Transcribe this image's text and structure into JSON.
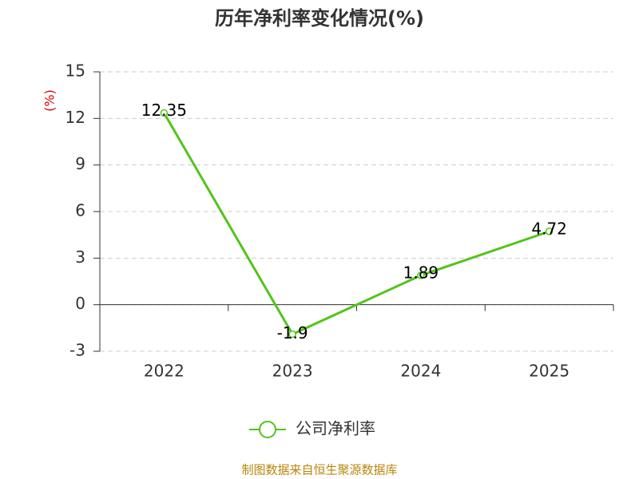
{
  "chart_data": {
    "type": "line",
    "title": "历年净利率变化情况(%)",
    "y_label": "(%)",
    "categories": [
      "2022",
      "2023",
      "2024",
      "2025"
    ],
    "series": [
      {
        "name": "公司净利率",
        "color": "#52c41a",
        "values": [
          12.35,
          -1.9,
          1.89,
          4.72
        ]
      }
    ],
    "ylim": [
      -3,
      15
    ],
    "yticks": [
      -3,
      0,
      3,
      6,
      9,
      12,
      15
    ],
    "grid": true,
    "legend": "bottom",
    "source": "制图数据来自恒生聚源数据库"
  }
}
